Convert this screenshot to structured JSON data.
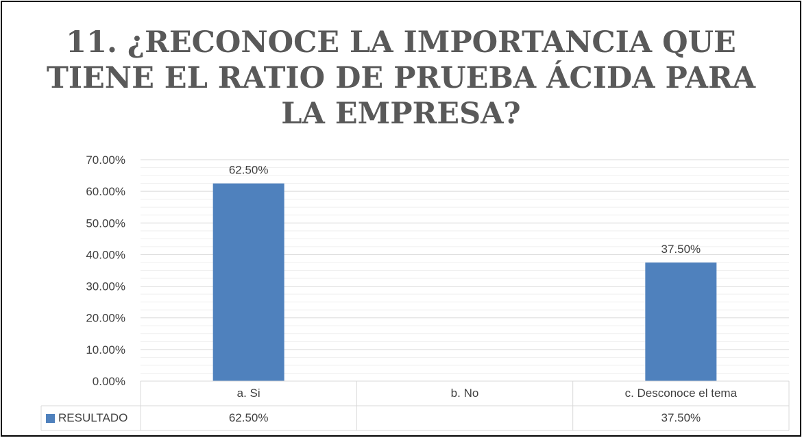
{
  "chart_data": {
    "type": "bar",
    "title": "11. ¿RECONOCE LA IMPORTANCIA QUE TIENE EL RATIO DE PRUEBA ÁCIDA PARA LA EMPRESA?",
    "title_lines": [
      "11. ¿RECONOCE LA IMPORTANCIA QUE",
      "TIENE EL RATIO DE PRUEBA ÁCIDA PARA",
      "LA EMPRESA?"
    ],
    "categories": [
      "a. Si",
      "b. No",
      "c. Desconoce el tema"
    ],
    "series": [
      {
        "name": "RESULTADO",
        "values": [
          62.5,
          null,
          37.5
        ],
        "labels": [
          "62.50%",
          "",
          "37.50%"
        ],
        "color": "#4F81BD"
      }
    ],
    "ylim": [
      0,
      70
    ],
    "yticks": [
      0,
      10,
      20,
      30,
      40,
      50,
      60,
      70
    ],
    "ytick_labels": [
      "0.00%",
      "10.00%",
      "20.00%",
      "30.00%",
      "40.00%",
      "50.00%",
      "60.00%",
      "70.00%"
    ],
    "grid": true,
    "legend": "data-table",
    "xlabel": "",
    "ylabel": ""
  }
}
